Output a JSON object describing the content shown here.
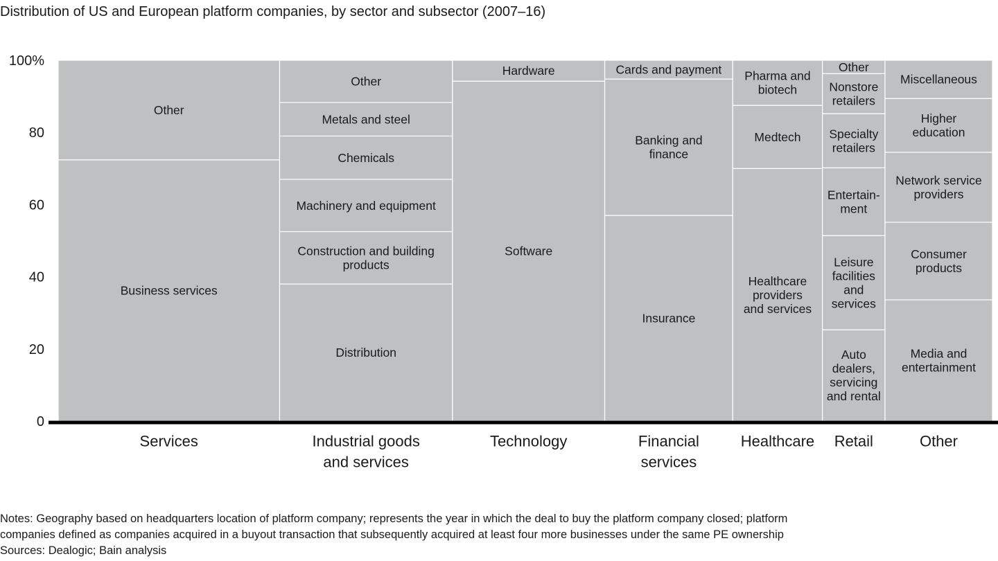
{
  "title": "Distribution of US and European platform companies, by sector and subsector (2007–16)",
  "chart_data": {
    "type": "marimekko",
    "title": "Distribution of US and European platform companies, by sector and subsector (2007–16)",
    "ylim": [
      0,
      100
    ],
    "yticks": [
      "0",
      "20",
      "40",
      "60",
      "80",
      "100%"
    ],
    "ytick_values": [
      0,
      20,
      40,
      60,
      80,
      100
    ],
    "fill_color": "#bfc0c2",
    "axis_color": "#000000",
    "columns": [
      {
        "name": "Services",
        "width_pct": 23.7,
        "segments": [
          {
            "label": "Business services",
            "value": 72.4
          },
          {
            "label": "Other",
            "value": 27.6
          }
        ]
      },
      {
        "name": "Industrial goods\nand services",
        "width_pct": 18.5,
        "segments": [
          {
            "label": "Distribution",
            "value": 38.0
          },
          {
            "label": "Construction and building\nproducts",
            "value": 14.5
          },
          {
            "label": "Machinery and equipment",
            "value": 14.5
          },
          {
            "label": "Chemicals",
            "value": 12.0
          },
          {
            "label": "Metals and steel",
            "value": 9.3
          },
          {
            "label": "Other",
            "value": 11.7
          }
        ]
      },
      {
        "name": "Technology",
        "width_pct": 16.3,
        "segments": [
          {
            "label": "Software",
            "value": 94.2
          },
          {
            "label": "Hardware",
            "value": 5.8
          }
        ]
      },
      {
        "name": "Financial\nservices",
        "width_pct": 13.7,
        "segments": [
          {
            "label": "Insurance",
            "value": 57.0
          },
          {
            "label": "Banking and\nfinance",
            "value": 37.8
          },
          {
            "label": "Cards and payment",
            "value": 5.2
          }
        ]
      },
      {
        "name": "Healthcare",
        "width_pct": 9.6,
        "segments": [
          {
            "label": "Healthcare\nproviders\nand services",
            "value": 70.0
          },
          {
            "label": "Medtech",
            "value": 17.5
          },
          {
            "label": "Pharma and\nbiotech",
            "value": 12.5
          }
        ]
      },
      {
        "name": "Retail",
        "width_pct": 6.7,
        "segments": [
          {
            "label": "Auto\ndealers,\nservicing\nand rental",
            "value": 25.3
          },
          {
            "label": "Leisure\nfacilities\nand\nservices",
            "value": 26.1
          },
          {
            "label": "Entertain-\nment",
            "value": 18.8
          },
          {
            "label": "Specialty\nretailers",
            "value": 15.0
          },
          {
            "label": "Nonstore\nretailers",
            "value": 11.1
          },
          {
            "label": "Other",
            "value": 3.7
          }
        ]
      },
      {
        "name": "Other",
        "width_pct": 11.5,
        "segments": [
          {
            "label": "Media and\nentertainment",
            "value": 33.6
          },
          {
            "label": "Consumer\nproducts",
            "value": 21.5
          },
          {
            "label": "Network service\nproviders",
            "value": 19.4
          },
          {
            "label": "Higher\neducation",
            "value": 14.9
          },
          {
            "label": "Miscellaneous",
            "value": 10.6
          }
        ]
      }
    ]
  },
  "notes": {
    "line1": "Notes: Geography based on headquarters location of platform company; represents the year in which the deal to buy the platform company closed; platform",
    "line2": "companies defined as companies acquired in a buyout transaction that subsequently acquired at least four more businesses under the same PE ownership",
    "sources": "Sources: Dealogic; Bain analysis"
  }
}
